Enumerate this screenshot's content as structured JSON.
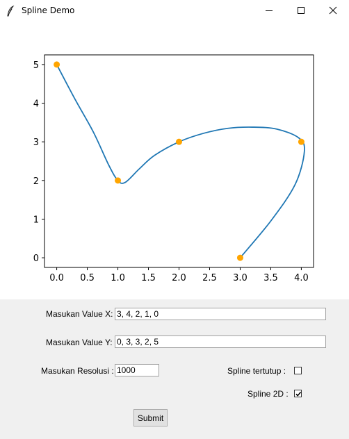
{
  "window": {
    "title": "Spline Demo",
    "icon": "feather-icon",
    "controls": [
      "minimize-icon",
      "maximize-icon",
      "close-icon"
    ]
  },
  "chart_data": {
    "type": "line",
    "title": "",
    "xlabel": "",
    "ylabel": "",
    "xlim": [
      -0.2,
      4.2
    ],
    "ylim": [
      -0.25,
      5.25
    ],
    "xticks": [
      "0.0",
      "0.5",
      "1.0",
      "1.5",
      "2.0",
      "2.5",
      "3.0",
      "3.5",
      "4.0"
    ],
    "yticks": [
      "0",
      "1",
      "2",
      "3",
      "4",
      "5"
    ],
    "grid": false,
    "points": {
      "x": [
        3,
        4,
        2,
        1,
        0
      ],
      "y": [
        0,
        3,
        3,
        2,
        5
      ],
      "color": "#ffa500"
    },
    "spline": {
      "color": "#1f77b4",
      "x": [
        3.0,
        3.5,
        3.9,
        4.05,
        3.96,
        3.6,
        3.2,
        2.8,
        2.4,
        2.0,
        1.6,
        1.35,
        1.12,
        1.0,
        0.85,
        0.6,
        0.3,
        0.0
      ],
      "y": [
        0.0,
        0.95,
        1.9,
        2.75,
        3.1,
        3.33,
        3.38,
        3.35,
        3.22,
        3.0,
        2.65,
        2.3,
        1.95,
        2.0,
        2.4,
        3.25,
        4.1,
        5.0
      ]
    }
  },
  "form": {
    "x_label": "Masukan Value X:",
    "x_value": "3, 4, 2, 1, 0",
    "y_label": "Masukan Value Y:",
    "y_value": "0, 3, 3, 2, 5",
    "res_label": "Masukan Resolusi :",
    "res_value": "1000",
    "closed_label": "Spline tertutup :",
    "closed_checked": false,
    "spline2d_label": "Spline 2D :",
    "spline2d_checked": true,
    "submit_label": "Submit"
  }
}
